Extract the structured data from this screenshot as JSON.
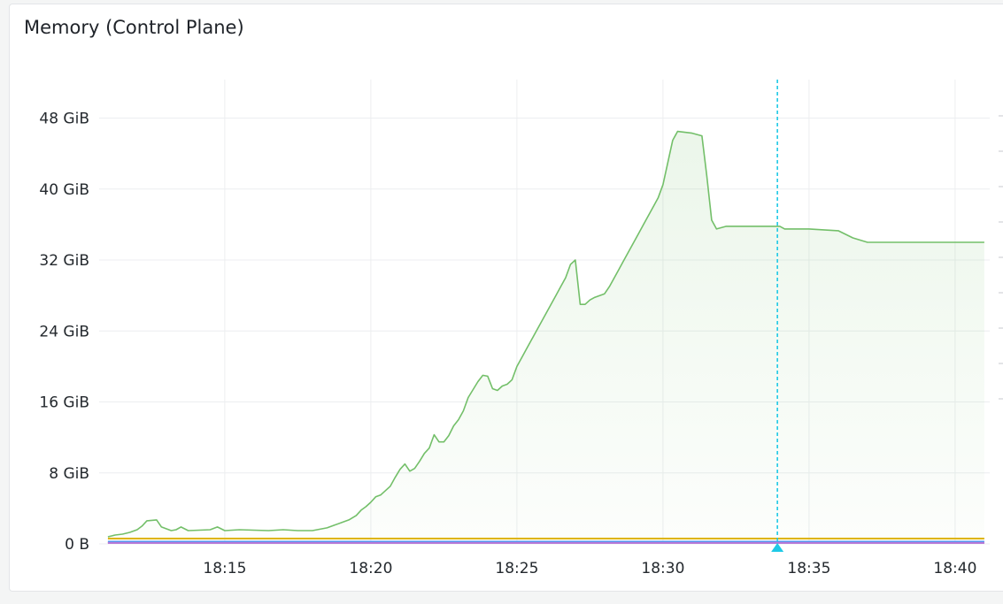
{
  "panel": {
    "title": "Memory (Control Plane)"
  },
  "chart_data": {
    "type": "area",
    "title": "Memory (Control Plane)",
    "xlabel": "",
    "ylabel": "",
    "x_ticks": [
      "18:15",
      "18:20",
      "18:25",
      "18:30",
      "18:35",
      "18:40"
    ],
    "y_ticks": [
      {
        "value": 0,
        "label": "0 B"
      },
      {
        "value": 8,
        "label": "8 GiB"
      },
      {
        "value": 16,
        "label": "16 GiB"
      },
      {
        "value": 24,
        "label": "24 GiB"
      },
      {
        "value": 32,
        "label": "32 GiB"
      },
      {
        "value": 40,
        "label": "40 GiB"
      },
      {
        "value": 48,
        "label": "48 GiB"
      }
    ],
    "x_range": [
      "18:11",
      "18:41"
    ],
    "y_range_gib": [
      0,
      50
    ],
    "grid": true,
    "legend": "none",
    "cursor_time": "18:33:55",
    "series": [
      {
        "color": "#73bf69",
        "fill": true,
        "points": [
          [
            "18:11:00",
            0.8
          ],
          [
            "18:11:15",
            1.0
          ],
          [
            "18:11:30",
            1.1
          ],
          [
            "18:11:45",
            1.3
          ],
          [
            "18:12:00",
            1.6
          ],
          [
            "18:12:10",
            2.0
          ],
          [
            "18:12:20",
            2.6
          ],
          [
            "18:12:40",
            2.7
          ],
          [
            "18:12:50",
            1.9
          ],
          [
            "18:13:10",
            1.5
          ],
          [
            "18:13:20",
            1.6
          ],
          [
            "18:13:30",
            1.9
          ],
          [
            "18:13:45",
            1.5
          ],
          [
            "18:14:30",
            1.6
          ],
          [
            "18:14:45",
            1.9
          ],
          [
            "18:15:00",
            1.5
          ],
          [
            "18:15:30",
            1.6
          ],
          [
            "18:16:30",
            1.5
          ],
          [
            "18:17:00",
            1.6
          ],
          [
            "18:17:30",
            1.5
          ],
          [
            "18:18:00",
            1.5
          ],
          [
            "18:18:30",
            1.8
          ],
          [
            "18:18:45",
            2.1
          ],
          [
            "18:19:00",
            2.4
          ],
          [
            "18:19:15",
            2.7
          ],
          [
            "18:19:30",
            3.2
          ],
          [
            "18:19:40",
            3.8
          ],
          [
            "18:19:50",
            4.2
          ],
          [
            "18:20:00",
            4.7
          ],
          [
            "18:20:10",
            5.3
          ],
          [
            "18:20:20",
            5.5
          ],
          [
            "18:20:30",
            6.0
          ],
          [
            "18:20:40",
            6.5
          ],
          [
            "18:20:50",
            7.5
          ],
          [
            "18:21:00",
            8.4
          ],
          [
            "18:21:10",
            9.0
          ],
          [
            "18:21:20",
            8.2
          ],
          [
            "18:21:30",
            8.5
          ],
          [
            "18:21:40",
            9.3
          ],
          [
            "18:21:50",
            10.2
          ],
          [
            "18:22:00",
            10.8
          ],
          [
            "18:22:10",
            12.3
          ],
          [
            "18:22:20",
            11.5
          ],
          [
            "18:22:30",
            11.5
          ],
          [
            "18:22:40",
            12.2
          ],
          [
            "18:22:50",
            13.3
          ],
          [
            "18:23:00",
            14.0
          ],
          [
            "18:23:10",
            15.0
          ],
          [
            "18:23:20",
            16.5
          ],
          [
            "18:23:30",
            17.4
          ],
          [
            "18:23:40",
            18.3
          ],
          [
            "18:23:50",
            19.0
          ],
          [
            "18:24:00",
            18.9
          ],
          [
            "18:24:10",
            17.5
          ],
          [
            "18:24:20",
            17.3
          ],
          [
            "18:24:30",
            17.8
          ],
          [
            "18:24:40",
            18.0
          ],
          [
            "18:24:50",
            18.5
          ],
          [
            "18:25:00",
            20.0
          ],
          [
            "18:25:10",
            21.0
          ],
          [
            "18:25:20",
            22.0
          ],
          [
            "18:25:30",
            23.0
          ],
          [
            "18:25:40",
            24.0
          ],
          [
            "18:25:50",
            25.0
          ],
          [
            "18:26:00",
            26.0
          ],
          [
            "18:26:10",
            27.0
          ],
          [
            "18:26:20",
            28.0
          ],
          [
            "18:26:30",
            29.0
          ],
          [
            "18:26:40",
            30.0
          ],
          [
            "18:26:50",
            31.5
          ],
          [
            "18:27:00",
            32.0
          ],
          [
            "18:27:10",
            27.0
          ],
          [
            "18:27:20",
            27.0
          ],
          [
            "18:27:30",
            27.5
          ],
          [
            "18:27:40",
            27.8
          ],
          [
            "18:27:50",
            28.0
          ],
          [
            "18:28:00",
            28.2
          ],
          [
            "18:28:10",
            29.0
          ],
          [
            "18:28:20",
            30.0
          ],
          [
            "18:28:30",
            31.0
          ],
          [
            "18:28:40",
            32.0
          ],
          [
            "18:28:50",
            33.0
          ],
          [
            "18:29:00",
            34.0
          ],
          [
            "18:29:10",
            35.0
          ],
          [
            "18:29:20",
            36.0
          ],
          [
            "18:29:30",
            37.0
          ],
          [
            "18:29:40",
            38.0
          ],
          [
            "18:29:50",
            39.0
          ],
          [
            "18:30:00",
            40.5
          ],
          [
            "18:30:10",
            43.0
          ],
          [
            "18:30:20",
            45.5
          ],
          [
            "18:30:30",
            46.5
          ],
          [
            "18:31:00",
            46.3
          ],
          [
            "18:31:20",
            46.0
          ],
          [
            "18:31:30",
            41.5
          ],
          [
            "18:31:40",
            36.5
          ],
          [
            "18:31:50",
            35.5
          ],
          [
            "18:32:10",
            35.8
          ],
          [
            "18:33:00",
            35.8
          ],
          [
            "18:34:00",
            35.8
          ],
          [
            "18:34:10",
            35.5
          ],
          [
            "18:35:00",
            35.5
          ],
          [
            "18:36:00",
            35.3
          ],
          [
            "18:36:30",
            34.5
          ],
          [
            "18:37:00",
            34.0
          ],
          [
            "18:38:00",
            34.0
          ],
          [
            "18:39:00",
            34.0
          ],
          [
            "18:41:00",
            34.0
          ]
        ]
      },
      {
        "color": "#e0b400",
        "fill": false,
        "points": [
          [
            "18:11:00",
            0.6
          ],
          [
            "18:41:00",
            0.6
          ]
        ]
      },
      {
        "color": "#f2495c",
        "fill": false,
        "points": [
          [
            "18:11:00",
            0.15
          ],
          [
            "18:41:00",
            0.15
          ]
        ]
      },
      {
        "color": "#5794f2",
        "fill": false,
        "points": [
          [
            "18:11:00",
            0.25
          ],
          [
            "18:41:00",
            0.25
          ]
        ]
      },
      {
        "color": "#b877d9",
        "fill": false,
        "points": [
          [
            "18:11:00",
            0.1
          ],
          [
            "18:41:00",
            0.1
          ]
        ]
      }
    ]
  }
}
